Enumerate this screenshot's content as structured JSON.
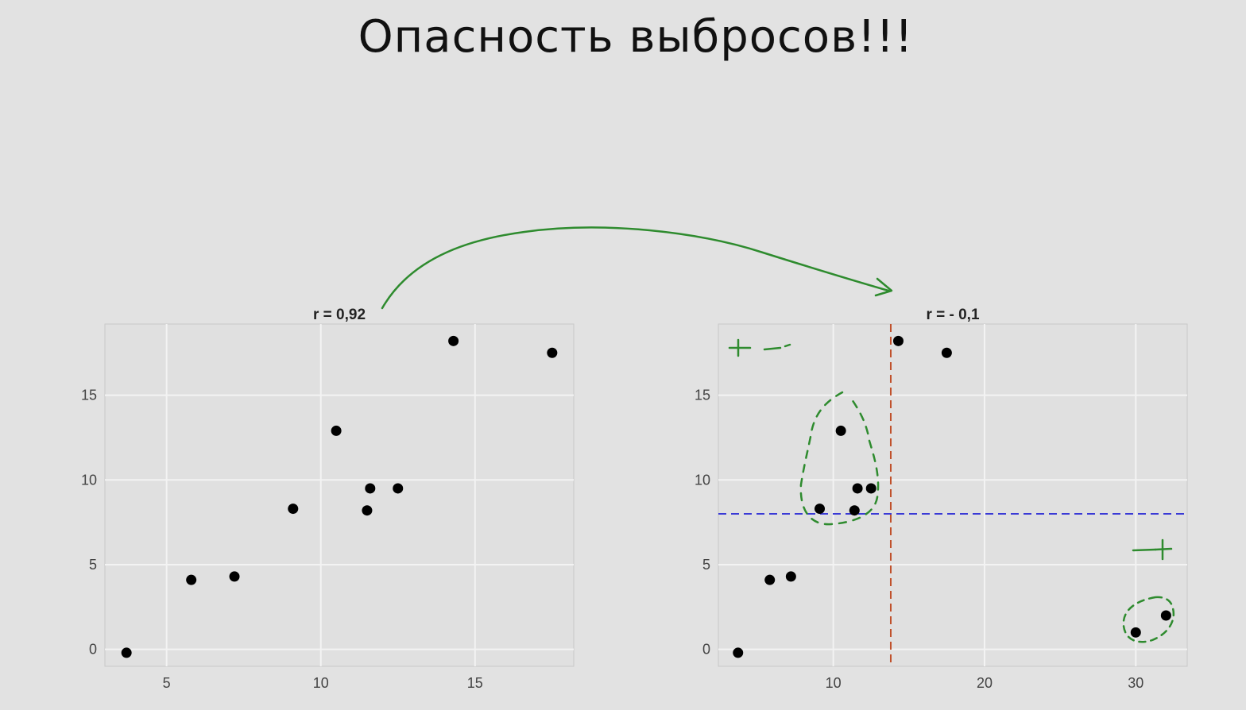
{
  "slide": {
    "title": "Опасность выбросов!!!"
  },
  "colors": {
    "background": "#e2e2e2",
    "panel": "#e0e0e0",
    "grid": "#f3f3f3",
    "points": "#000000",
    "annotation": "#2e8b2e",
    "mean_x_line": "#c0502a",
    "mean_y_line": "#3a3ad6"
  },
  "chart_data": [
    {
      "type": "scatter",
      "title": "r = 0,92",
      "xlabel": "",
      "ylabel": "",
      "xlim": [
        3.0,
        18.2
      ],
      "ylim": [
        -1.0,
        19.2
      ],
      "xticks": [
        5,
        10,
        15
      ],
      "yticks": [
        0,
        5,
        10,
        15
      ],
      "grid": true,
      "points": [
        {
          "x": 3.7,
          "y": -0.2
        },
        {
          "x": 5.8,
          "y": 4.1
        },
        {
          "x": 7.2,
          "y": 4.3
        },
        {
          "x": 9.1,
          "y": 8.3
        },
        {
          "x": 10.5,
          "y": 12.9
        },
        {
          "x": 11.5,
          "y": 8.2
        },
        {
          "x": 11.6,
          "y": 9.5
        },
        {
          "x": 12.5,
          "y": 9.5
        },
        {
          "x": 14.3,
          "y": 18.2
        },
        {
          "x": 17.5,
          "y": 17.5
        }
      ]
    },
    {
      "type": "scatter",
      "title": "r = - 0,1",
      "xlabel": "",
      "ylabel": "",
      "xlim": [
        2.4,
        33.4
      ],
      "ylim": [
        -1.0,
        19.2
      ],
      "xticks": [
        10,
        20,
        30
      ],
      "yticks": [
        0,
        5,
        10,
        15
      ],
      "grid": true,
      "reference_lines": {
        "mean_x": 13.8,
        "mean_y": 8.0
      },
      "points": [
        {
          "x": 3.7,
          "y": -0.2
        },
        {
          "x": 5.8,
          "y": 4.1
        },
        {
          "x": 7.2,
          "y": 4.3
        },
        {
          "x": 9.1,
          "y": 8.3
        },
        {
          "x": 10.5,
          "y": 12.9
        },
        {
          "x": 11.4,
          "y": 8.2
        },
        {
          "x": 11.6,
          "y": 9.5
        },
        {
          "x": 12.5,
          "y": 9.5
        },
        {
          "x": 14.3,
          "y": 18.2
        },
        {
          "x": 17.5,
          "y": 17.5
        },
        {
          "x": 30.0,
          "y": 1.0
        },
        {
          "x": 32.0,
          "y": 2.0
        }
      ]
    }
  ]
}
